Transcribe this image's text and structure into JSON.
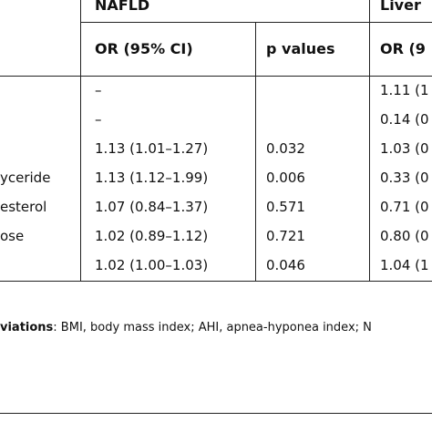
{
  "table": {
    "group_headers": {
      "nafld": "NAFLD",
      "liver": "Liver"
    },
    "sub_headers": {
      "nafld_or": "OR (95% CI)",
      "nafld_p": "p values",
      "liver_or": "OR (9"
    },
    "rows": [
      {
        "label": "",
        "or_nafld": "–",
        "p_nafld": "",
        "or_liver": "1.11 (1"
      },
      {
        "label": "",
        "or_nafld": "–",
        "p_nafld": "",
        "or_liver": "0.14 (0"
      },
      {
        "label": "",
        "or_nafld": "1.13 (1.01–1.27)",
        "p_nafld": "0.032",
        "or_liver": "1.03 (0"
      },
      {
        "label": "yceride",
        "or_nafld": "1.13 (1.12–1.99)",
        "p_nafld": "0.006",
        "or_liver": "0.33 (0"
      },
      {
        "label": "esterol",
        "or_nafld": "1.07 (0.84–1.37)",
        "p_nafld": "0.571",
        "or_liver": "0.71 (0"
      },
      {
        "label": "ose",
        "or_nafld": "1.02 (0.89–1.12)",
        "p_nafld": "0.721",
        "or_liver": "0.80 (0"
      },
      {
        "label": "",
        "or_nafld": "1.02 (1.00–1.03)",
        "p_nafld": "0.046",
        "or_liver": "1.04 (1"
      }
    ]
  },
  "footnote": {
    "label": "viations",
    "text": ": BMI, body mass index; AHI, apnea-hyponea index; N"
  }
}
